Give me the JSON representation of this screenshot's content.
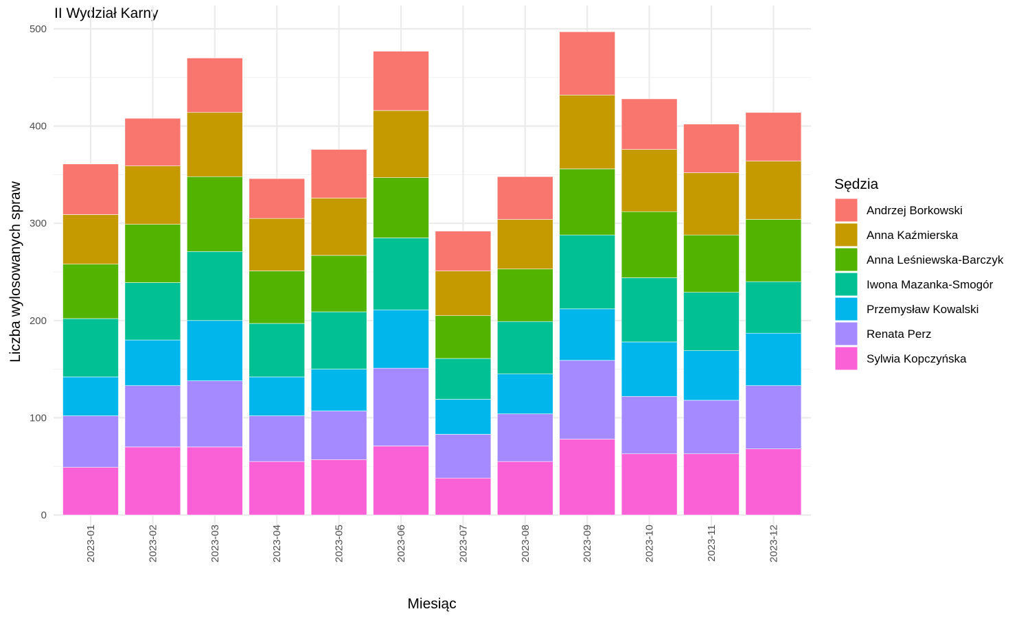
{
  "chart_data": {
    "type": "bar",
    "stacked": true,
    "title": "II Wydział Karny",
    "xlabel": "Miesiąc",
    "ylabel": "Liczba wylosowanych spraw",
    "ylim": [
      0,
      500
    ],
    "yticks": [
      0,
      100,
      200,
      300,
      400,
      500
    ],
    "grid": true,
    "legend_title": "Sędzia",
    "legend_position": "right",
    "categories": [
      "2023-01",
      "2023-02",
      "2023-03",
      "2023-04",
      "2023-05",
      "2023-06",
      "2023-07",
      "2023-08",
      "2023-09",
      "2023-10",
      "2023-11",
      "2023-12"
    ],
    "series": [
      {
        "name": "Sylwia Kopczyńska",
        "color": "#FB61D7",
        "values": [
          49,
          70,
          70,
          55,
          57,
          71,
          38,
          55,
          78,
          63,
          63,
          68
        ]
      },
      {
        "name": "Renata Perz",
        "color": "#A58AFF",
        "values": [
          53,
          63,
          68,
          47,
          50,
          80,
          45,
          49,
          81,
          59,
          55,
          65
        ]
      },
      {
        "name": "Przemysław Kowalski",
        "color": "#00B6EB",
        "values": [
          40,
          47,
          62,
          40,
          43,
          60,
          36,
          41,
          53,
          56,
          51,
          54
        ]
      },
      {
        "name": "Iwona Mazanka-Smogór",
        "color": "#00C094",
        "values": [
          60,
          59,
          71,
          55,
          59,
          74,
          42,
          54,
          76,
          66,
          60,
          53
        ]
      },
      {
        "name": "Anna Leśniewska-Barczyk",
        "color": "#53B400",
        "values": [
          56,
          60,
          77,
          54,
          58,
          62,
          44,
          54,
          68,
          68,
          59,
          64
        ]
      },
      {
        "name": "Anna Kaźmierska",
        "color": "#C49A00",
        "values": [
          51,
          60,
          66,
          54,
          59,
          69,
          46,
          51,
          76,
          64,
          64,
          60
        ]
      },
      {
        "name": "Andrzej Borkowski",
        "color": "#F8766D",
        "values": [
          52,
          49,
          56,
          41,
          50,
          61,
          41,
          44,
          65,
          52,
          50,
          50
        ]
      }
    ],
    "legend_order": [
      "Andrzej Borkowski",
      "Anna Kaźmierska",
      "Anna Leśniewska-Barczyk",
      "Iwona Mazanka-Smogór",
      "Przemysław Kowalski",
      "Renata Perz",
      "Sylwia Kopczyńska"
    ]
  }
}
